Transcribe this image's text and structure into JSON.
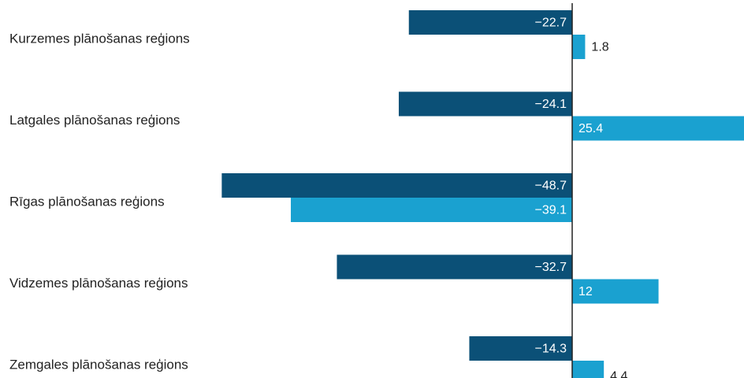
{
  "chart_data": {
    "type": "bar",
    "orientation": "horizontal",
    "title": "",
    "xlabel": "",
    "ylabel": "",
    "categories": [
      "Kurzemes plānošanas reģions",
      "Latgales plānošanas reģions",
      "Rīgas plānošanas reģions",
      "Vidzemes plānošanas reģions",
      "Zemgales plānošanas reģions"
    ],
    "series": [
      {
        "values": [
          -22.7,
          -24.1,
          -48.7,
          -32.7,
          -14.3
        ],
        "labels": [
          "−22.7",
          "−24.1",
          "−48.7",
          "−32.7",
          "−14.3"
        ],
        "color": "#0b5077"
      },
      {
        "values": [
          1.8,
          25.4,
          -39.1,
          12,
          4.4
        ],
        "labels": [
          "1.8",
          "25.4",
          "−39.1",
          "12",
          "4.4"
        ],
        "color": "#1aa1d0"
      }
    ],
    "xlim": [
      -48.7,
      25.4
    ],
    "grid": false,
    "legend": "none"
  }
}
